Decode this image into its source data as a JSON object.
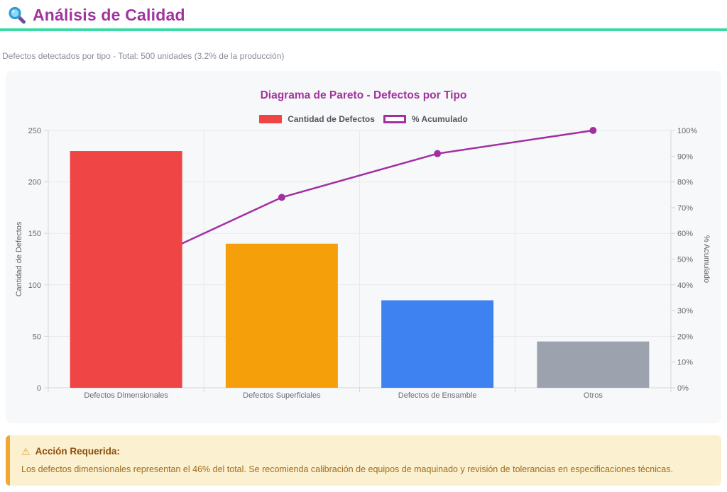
{
  "header": {
    "title": "Análisis de Calidad",
    "icon": "magnifier-icon"
  },
  "subtitle": "Defectos detectados por tipo - Total: 500 unidades (3.2% de la producción)",
  "chart": {
    "title": "Diagrama de Pareto - Defectos por Tipo",
    "legend": [
      {
        "label": "Cantidad de Defectos",
        "type": "bar",
        "color": "#f04545"
      },
      {
        "label": "% Acumulado",
        "type": "line",
        "color": "#a22fa2"
      }
    ]
  },
  "chart_data": {
    "type": "bar",
    "subtype": "pareto (bar + cumulative line)",
    "title": "Diagrama de Pareto - Defectos por Tipo",
    "categories": [
      "Defectos Dimensionales",
      "Defectos Superficiales",
      "Defectos de Ensamble",
      "Otros"
    ],
    "series": [
      {
        "name": "Cantidad de Defectos",
        "type": "bar",
        "axis": "left",
        "values": [
          230,
          140,
          85,
          45
        ],
        "colors": [
          "#f04545",
          "#f5a00b",
          "#3e82f1",
          "#9da3ae"
        ]
      },
      {
        "name": "% Acumulado",
        "type": "line",
        "axis": "right",
        "values": [
          46,
          74,
          91,
          100
        ],
        "color": "#a22fa2",
        "point_radius": 5,
        "line_width": 2.5
      }
    ],
    "y_left": {
      "label": "Cantidad de Defectos",
      "min": 0,
      "max": 250,
      "step": 50,
      "suffix": ""
    },
    "y_right": {
      "label": "% Acumulado",
      "min": 0,
      "max": 100,
      "step": 10,
      "suffix": "%"
    },
    "grid": true,
    "legend_position": "top",
    "tick_color": "#6a6a72",
    "grid_color": "#e8e9ec",
    "axis_color": "#d4d6da"
  },
  "alert": {
    "title": "Acción Requerida:",
    "icon": "warning-triangle-icon",
    "text": "Los defectos dimensionales representan el 46% del total. Se recomienda calibración de equipos de maquinado y revisión de tolerancias en especificaciones técnicas."
  },
  "colors": {
    "accent_teal": "#3cd9a4",
    "title_purple": "#a2339e",
    "card_bg": "#f7f8fa",
    "alert_bg": "#fbf0cf",
    "alert_border": "#f0a832"
  }
}
